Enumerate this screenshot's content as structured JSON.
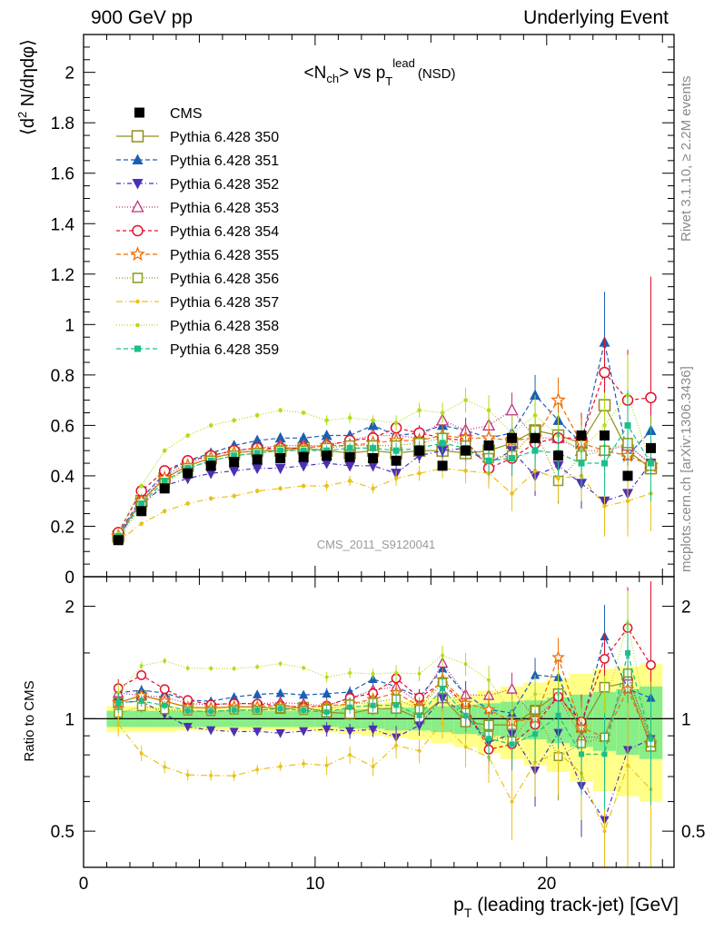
{
  "header": {
    "left": "900 GeV pp",
    "right": "Underlying Event"
  },
  "side_notes": {
    "top": "Rivet 3.1.10, ≥ 2.2M events",
    "bottom": "mcplots.cern.ch [arXiv:1306.3436]"
  },
  "chart_data": {
    "type": "scatter",
    "title": "<N_ch> vs p_T^lead (NSD)",
    "title_parts": {
      "main": "<N",
      "sub1": "ch",
      "mid": "> vs p",
      "sub2": "T",
      "sup": "lead",
      "tail": "(NSD)"
    },
    "watermark": "CMS_2011_S9120041",
    "ylabel": "⟨d² N/dηdφ⟩",
    "ylabel_parts": {
      "a": "⟨d",
      "sup": "2",
      "b": " N/dηdφ⟩"
    },
    "ratio_ylabel": "Ratio to CMS",
    "xlabel": "p_T (leading track-jet) [GeV]",
    "xlabel_parts": {
      "a": "p",
      "sub": "T",
      "b": " (leading track-jet) [GeV]"
    },
    "xlim": [
      0,
      25.5
    ],
    "ylim": [
      0,
      2.15
    ],
    "ratio_ylim": [
      0.4,
      2.4
    ],
    "ratio_log": true,
    "x_ticks": [
      0,
      10,
      20
    ],
    "x_tick_labels": [
      "0",
      "10",
      "20"
    ],
    "y_ticks": [
      0,
      0.2,
      0.4,
      0.6,
      0.8,
      1,
      1.2,
      1.4,
      1.6,
      1.8,
      2
    ],
    "y_tick_labels": [
      "0",
      "0.2",
      "0.4",
      "0.6",
      "0.8",
      "1",
      "1.2",
      "1.4",
      "1.6",
      "1.8",
      "2"
    ],
    "ratio_ticks": [
      0.5,
      1,
      2
    ],
    "ratio_tick_labels": [
      "0.5",
      "1",
      "2"
    ],
    "x": [
      1.5,
      2.5,
      3.5,
      4.5,
      5.5,
      6.5,
      7.5,
      8.5,
      9.5,
      10.5,
      11.5,
      12.5,
      13.5,
      14.5,
      15.5,
      16.5,
      17.5,
      18.5,
      19.5,
      20.5,
      21.5,
      22.5,
      23.5,
      24.5
    ],
    "data": {
      "name": "CMS",
      "color": "#000000",
      "values": [
        0.145,
        0.26,
        0.35,
        0.41,
        0.44,
        0.455,
        0.465,
        0.47,
        0.475,
        0.48,
        0.475,
        0.47,
        0.46,
        0.5,
        0.44,
        0.5,
        0.52,
        0.55,
        0.55,
        0.48,
        0.56,
        0.56,
        0.4,
        0.51
      ],
      "band_inner": [
        0.05,
        0.05,
        0.05,
        0.05,
        0.05,
        0.05,
        0.05,
        0.05,
        0.05,
        0.05,
        0.06,
        0.06,
        0.07,
        0.07,
        0.08,
        0.09,
        0.1,
        0.11,
        0.12,
        0.14,
        0.16,
        0.18,
        0.2,
        0.22
      ],
      "band_outer": [
        0.08,
        0.08,
        0.08,
        0.07,
        0.07,
        0.07,
        0.07,
        0.07,
        0.07,
        0.08,
        0.09,
        0.1,
        0.11,
        0.12,
        0.14,
        0.16,
        0.19,
        0.22,
        0.25,
        0.28,
        0.32,
        0.36,
        0.38,
        0.4
      ]
    },
    "series": [
      {
        "name": "Pythia 6.428 350",
        "color": "#8f8f1f",
        "marker": "open-square",
        "dash": "solid",
        "values": [
          0.16,
          0.3,
          0.39,
          0.44,
          0.47,
          0.49,
          0.5,
          0.5,
          0.51,
          0.5,
          0.49,
          0.5,
          0.49,
          0.5,
          0.5,
          0.49,
          0.5,
          0.53,
          0.58,
          0.56,
          0.53,
          0.68,
          0.5,
          0.43
        ],
        "err": [
          0.01,
          0.01,
          0.01,
          0.01,
          0.01,
          0.01,
          0.01,
          0.01,
          0.01,
          0.02,
          0.02,
          0.02,
          0.03,
          0.03,
          0.04,
          0.05,
          0.05,
          0.06,
          0.07,
          0.08,
          0.09,
          0.12,
          0.12,
          0.14
        ]
      },
      {
        "name": "Pythia 6.428 351",
        "color": "#1a5fb4",
        "marker": "filled-triangle",
        "dash": "5,3",
        "values": [
          0.17,
          0.31,
          0.41,
          0.46,
          0.49,
          0.52,
          0.54,
          0.55,
          0.55,
          0.56,
          0.56,
          0.6,
          0.56,
          0.57,
          0.6,
          0.58,
          0.55,
          0.57,
          0.72,
          0.62,
          0.53,
          0.93,
          0.48,
          0.58
        ],
        "err": [
          0.01,
          0.01,
          0.01,
          0.01,
          0.01,
          0.01,
          0.01,
          0.01,
          0.01,
          0.02,
          0.02,
          0.02,
          0.03,
          0.03,
          0.04,
          0.05,
          0.06,
          0.07,
          0.08,
          0.09,
          0.1,
          0.2,
          0.14,
          0.15
        ]
      },
      {
        "name": "Pythia 6.428 352",
        "color": "#4d2fb3",
        "marker": "filled-triangle-down",
        "dash": "5,3,1,3",
        "values": [
          0.16,
          0.29,
          0.36,
          0.39,
          0.41,
          0.42,
          0.43,
          0.43,
          0.44,
          0.45,
          0.44,
          0.44,
          0.41,
          0.48,
          0.5,
          0.51,
          0.45,
          0.5,
          0.4,
          0.44,
          0.37,
          0.3,
          0.33,
          0.45
        ],
        "err": [
          0.01,
          0.01,
          0.01,
          0.01,
          0.01,
          0.01,
          0.01,
          0.01,
          0.01,
          0.02,
          0.02,
          0.02,
          0.03,
          0.03,
          0.04,
          0.05,
          0.06,
          0.07,
          0.08,
          0.09,
          0.1,
          0.14,
          0.14,
          0.15
        ]
      },
      {
        "name": "Pythia 6.428 353",
        "color": "#c0307a",
        "marker": "open-triangle",
        "dash": "1,2",
        "values": [
          0.17,
          0.3,
          0.4,
          0.45,
          0.48,
          0.5,
          0.51,
          0.52,
          0.52,
          0.52,
          0.54,
          0.56,
          0.56,
          0.55,
          0.62,
          0.58,
          0.6,
          0.66,
          0.55,
          0.55,
          0.5,
          0.5,
          0.52,
          0.45
        ],
        "err": [
          0.01,
          0.01,
          0.01,
          0.01,
          0.01,
          0.01,
          0.01,
          0.01,
          0.01,
          0.02,
          0.02,
          0.02,
          0.03,
          0.03,
          0.04,
          0.05,
          0.06,
          0.07,
          0.08,
          0.09,
          0.1,
          0.13,
          0.14,
          0.15
        ]
      },
      {
        "name": "Pythia 6.428 354",
        "color": "#e0102a",
        "marker": "open-circle",
        "dash": "4,3",
        "values": [
          0.175,
          0.34,
          0.42,
          0.46,
          0.48,
          0.5,
          0.51,
          0.51,
          0.51,
          0.52,
          0.54,
          0.55,
          0.59,
          0.57,
          0.55,
          0.54,
          0.43,
          0.47,
          0.53,
          0.55,
          0.55,
          0.81,
          0.7,
          0.71
        ],
        "err": [
          0.01,
          0.01,
          0.01,
          0.01,
          0.01,
          0.01,
          0.01,
          0.01,
          0.01,
          0.02,
          0.02,
          0.02,
          0.03,
          0.03,
          0.04,
          0.05,
          0.06,
          0.07,
          0.08,
          0.09,
          0.1,
          0.14,
          0.2,
          0.48
        ]
      },
      {
        "name": "Pythia 6.428 355",
        "color": "#f06d00",
        "marker": "open-star",
        "dash": "5,3",
        "values": [
          0.16,
          0.3,
          0.39,
          0.44,
          0.47,
          0.49,
          0.5,
          0.51,
          0.51,
          0.52,
          0.52,
          0.53,
          0.54,
          0.54,
          0.56,
          0.55,
          0.55,
          0.54,
          0.55,
          0.7,
          0.53,
          0.5,
          0.48,
          0.44
        ],
        "err": [
          0.01,
          0.01,
          0.01,
          0.01,
          0.01,
          0.01,
          0.01,
          0.01,
          0.01,
          0.02,
          0.02,
          0.02,
          0.03,
          0.03,
          0.04,
          0.05,
          0.06,
          0.07,
          0.08,
          0.09,
          0.1,
          0.13,
          0.14,
          0.15
        ]
      },
      {
        "name": "Pythia 6.428 356",
        "color": "#8a9a1b",
        "marker": "open-square-small",
        "dash": "1,2",
        "values": [
          0.15,
          0.28,
          0.37,
          0.43,
          0.46,
          0.48,
          0.49,
          0.5,
          0.5,
          0.51,
          0.52,
          0.52,
          0.52,
          0.53,
          0.55,
          0.52,
          0.47,
          0.48,
          0.58,
          0.38,
          0.48,
          0.5,
          0.53,
          0.44
        ],
        "err": [
          0.01,
          0.01,
          0.01,
          0.01,
          0.01,
          0.01,
          0.01,
          0.01,
          0.01,
          0.02,
          0.02,
          0.02,
          0.03,
          0.03,
          0.04,
          0.05,
          0.06,
          0.07,
          0.08,
          0.09,
          0.1,
          0.13,
          0.14,
          0.2
        ]
      },
      {
        "name": "Pythia 6.428 357",
        "color": "#e8c21a",
        "marker": "small-dot",
        "dash": "7,3,1,3",
        "values": [
          0.14,
          0.21,
          0.26,
          0.29,
          0.31,
          0.32,
          0.34,
          0.35,
          0.36,
          0.36,
          0.38,
          0.35,
          0.39,
          0.41,
          0.43,
          0.42,
          0.41,
          0.33,
          0.42,
          0.39,
          0.4,
          0.28,
          0.3,
          0.33
        ],
        "err": [
          0.01,
          0.01,
          0.01,
          0.01,
          0.01,
          0.01,
          0.01,
          0.01,
          0.01,
          0.02,
          0.02,
          0.02,
          0.03,
          0.03,
          0.04,
          0.05,
          0.06,
          0.07,
          0.08,
          0.09,
          0.1,
          0.12,
          0.14,
          0.15
        ]
      },
      {
        "name": "Pythia 6.428 358",
        "color": "#b2dd1a",
        "marker": "small-dot",
        "dash": "1,2",
        "values": [
          0.17,
          0.36,
          0.5,
          0.56,
          0.6,
          0.62,
          0.64,
          0.66,
          0.65,
          0.62,
          0.63,
          0.62,
          0.61,
          0.66,
          0.65,
          0.7,
          0.66,
          0.57,
          0.64,
          0.56,
          0.5,
          0.6,
          0.72,
          0.45
        ],
        "err": [
          0.01,
          0.01,
          0.01,
          0.01,
          0.01,
          0.01,
          0.01,
          0.01,
          0.01,
          0.02,
          0.02,
          0.02,
          0.03,
          0.03,
          0.04,
          0.05,
          0.06,
          0.07,
          0.08,
          0.09,
          0.1,
          0.13,
          0.16,
          0.15
        ]
      },
      {
        "name": "Pythia 6.428 359",
        "color": "#1bbf8a",
        "marker": "filled-square-small",
        "dash": "5,3",
        "values": [
          0.16,
          0.29,
          0.38,
          0.43,
          0.46,
          0.48,
          0.49,
          0.5,
          0.5,
          0.5,
          0.51,
          0.51,
          0.5,
          0.51,
          0.53,
          0.51,
          0.46,
          0.47,
          0.5,
          0.49,
          0.45,
          0.45,
          0.6,
          0.45
        ],
        "err": [
          0.01,
          0.01,
          0.01,
          0.01,
          0.01,
          0.01,
          0.01,
          0.01,
          0.01,
          0.02,
          0.02,
          0.02,
          0.03,
          0.03,
          0.04,
          0.05,
          0.06,
          0.07,
          0.08,
          0.09,
          0.1,
          0.13,
          0.14,
          0.15
        ]
      }
    ],
    "legend_position": "upper-left",
    "grid": false
  }
}
